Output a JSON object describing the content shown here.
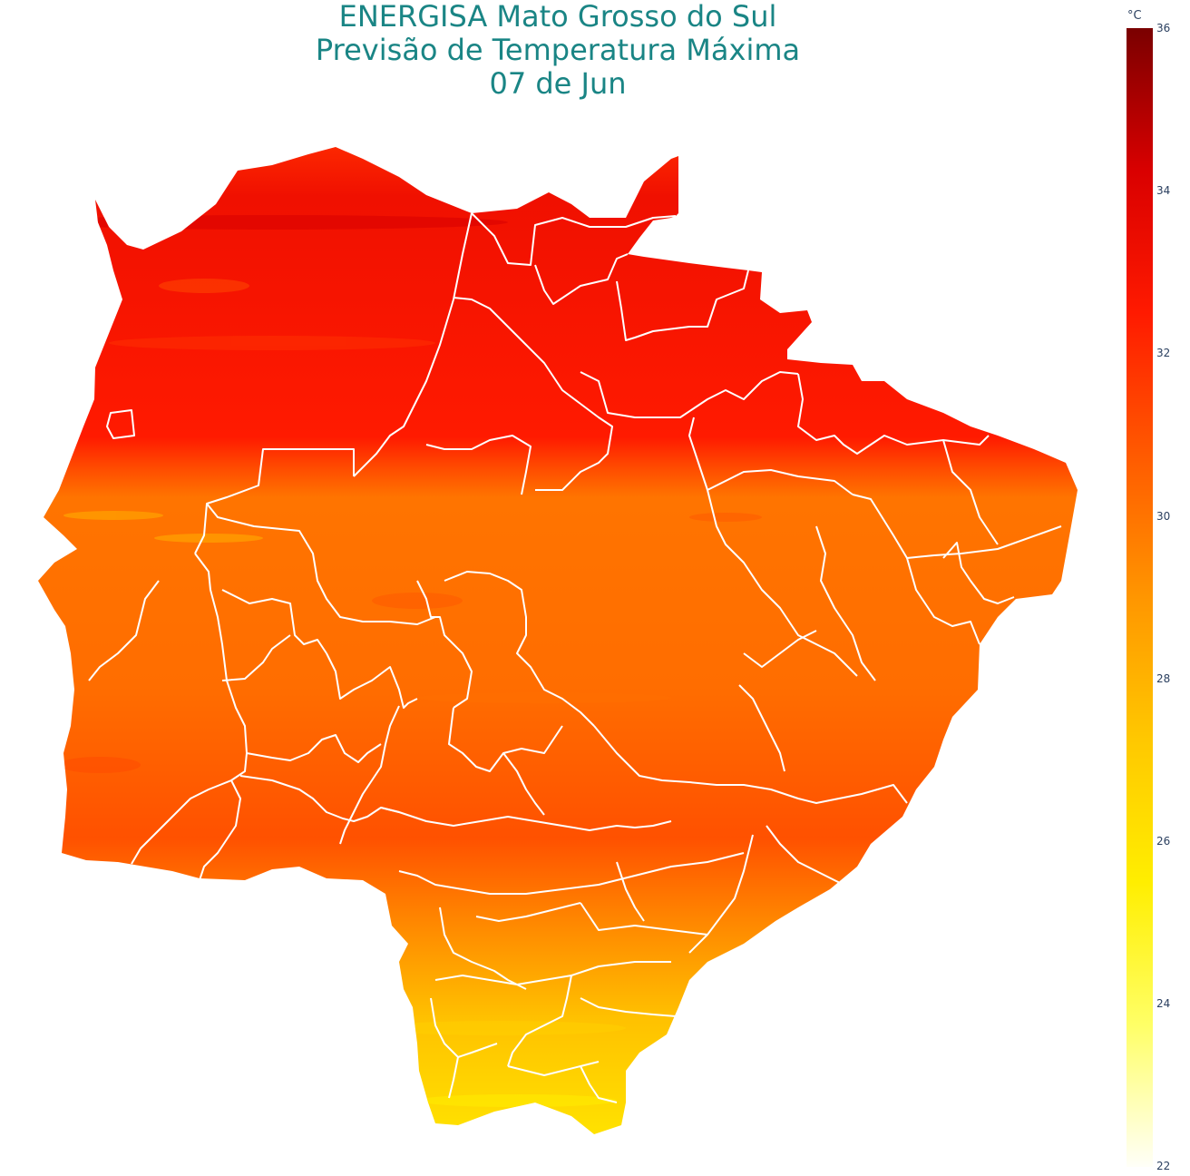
{
  "title": {
    "line1": "ENERGISA Mato Grosso do Sul",
    "line2": "Previsão de Temperatura Máxima",
    "line3": "07 de Jun"
  },
  "colorbar": {
    "unit": "°C",
    "min": 22,
    "max": 36,
    "ticks": [
      "36",
      "34",
      "32",
      "30",
      "28",
      "26",
      "24",
      "22"
    ],
    "colors": [
      "#fffff8",
      "#ffff66",
      "#ffee00",
      "#ffc800",
      "#ff9600",
      "#ff5a00",
      "#ff1a00",
      "#d90000",
      "#7a0000"
    ]
  },
  "map": {
    "temperature_bands": [
      {
        "from_north": 0.0,
        "value_c": 32.0
      },
      {
        "from_north": 0.06,
        "value_c": 33.2
      },
      {
        "from_north": 0.3,
        "value_c": 32.5
      },
      {
        "from_north": 0.33,
        "value_c": 31.2
      },
      {
        "from_north": 0.36,
        "value_c": 30.0
      },
      {
        "from_north": 0.55,
        "value_c": 30.2
      },
      {
        "from_north": 0.7,
        "value_c": 31.0
      },
      {
        "from_north": 0.78,
        "value_c": 29.5
      },
      {
        "from_north": 0.88,
        "value_c": 27.5
      },
      {
        "from_north": 1.0,
        "value_c": 26.0
      }
    ],
    "boundary_color": "#ffffff"
  }
}
